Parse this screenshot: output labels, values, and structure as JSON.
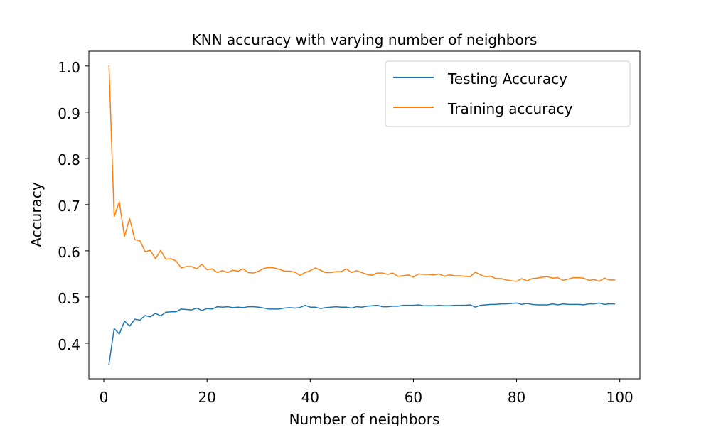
{
  "chart_data": {
    "type": "line",
    "title": "KNN accuracy with varying number of neighbors",
    "xlabel": "Number of neighbors",
    "ylabel": "Accuracy",
    "xlim": [
      -2.9,
      103.9
    ],
    "ylim": [
      0.323,
      1.032
    ],
    "xticks": [
      0,
      20,
      40,
      60,
      80,
      100
    ],
    "xtick_labels": [
      "0",
      "20",
      "40",
      "60",
      "80",
      "100"
    ],
    "yticks": [
      0.4,
      0.5,
      0.6,
      0.7,
      0.8,
      0.9,
      1.0
    ],
    "ytick_labels": [
      "0.4",
      "0.5",
      "0.6",
      "0.7",
      "0.8",
      "0.9",
      "1.0"
    ],
    "grid": false,
    "legend_position": "top-right",
    "x_start": 1,
    "series": [
      {
        "name": "Testing Accuracy",
        "color": "#1f77b4",
        "values": [
          0.355,
          0.432,
          0.42,
          0.448,
          0.437,
          0.452,
          0.45,
          0.46,
          0.457,
          0.465,
          0.459,
          0.467,
          0.468,
          0.468,
          0.474,
          0.473,
          0.472,
          0.476,
          0.471,
          0.475,
          0.474,
          0.479,
          0.478,
          0.479,
          0.477,
          0.478,
          0.477,
          0.479,
          0.479,
          0.478,
          0.476,
          0.474,
          0.474,
          0.474,
          0.476,
          0.477,
          0.476,
          0.477,
          0.482,
          0.478,
          0.478,
          0.475,
          0.477,
          0.478,
          0.479,
          0.478,
          0.478,
          0.476,
          0.479,
          0.478,
          0.48,
          0.481,
          0.482,
          0.479,
          0.479,
          0.48,
          0.48,
          0.482,
          0.482,
          0.482,
          0.483,
          0.481,
          0.481,
          0.481,
          0.482,
          0.481,
          0.481,
          0.482,
          0.482,
          0.482,
          0.483,
          0.478,
          0.482,
          0.483,
          0.484,
          0.484,
          0.485,
          0.485,
          0.486,
          0.487,
          0.484,
          0.486,
          0.484,
          0.483,
          0.483,
          0.483,
          0.485,
          0.483,
          0.485,
          0.484,
          0.484,
          0.484,
          0.483,
          0.485,
          0.485,
          0.487,
          0.484,
          0.485,
          0.485
        ]
      },
      {
        "name": "Training accuracy",
        "color": "#ff7f0e",
        "values": [
          1.0,
          0.674,
          0.706,
          0.631,
          0.67,
          0.624,
          0.622,
          0.598,
          0.601,
          0.583,
          0.601,
          0.582,
          0.583,
          0.578,
          0.563,
          0.566,
          0.566,
          0.561,
          0.571,
          0.559,
          0.561,
          0.553,
          0.557,
          0.553,
          0.558,
          0.556,
          0.561,
          0.553,
          0.552,
          0.556,
          0.562,
          0.564,
          0.563,
          0.56,
          0.556,
          0.556,
          0.554,
          0.547,
          0.553,
          0.557,
          0.563,
          0.558,
          0.553,
          0.553,
          0.555,
          0.555,
          0.561,
          0.553,
          0.557,
          0.553,
          0.549,
          0.547,
          0.552,
          0.552,
          0.549,
          0.552,
          0.545,
          0.546,
          0.548,
          0.543,
          0.55,
          0.549,
          0.549,
          0.548,
          0.55,
          0.545,
          0.548,
          0.546,
          0.546,
          0.545,
          0.544,
          0.554,
          0.548,
          0.544,
          0.545,
          0.54,
          0.54,
          0.537,
          0.535,
          0.534,
          0.54,
          0.535,
          0.54,
          0.541,
          0.543,
          0.544,
          0.541,
          0.542,
          0.536,
          0.539,
          0.542,
          0.542,
          0.541,
          0.536,
          0.538,
          0.534,
          0.541,
          0.537,
          0.537
        ]
      }
    ]
  }
}
